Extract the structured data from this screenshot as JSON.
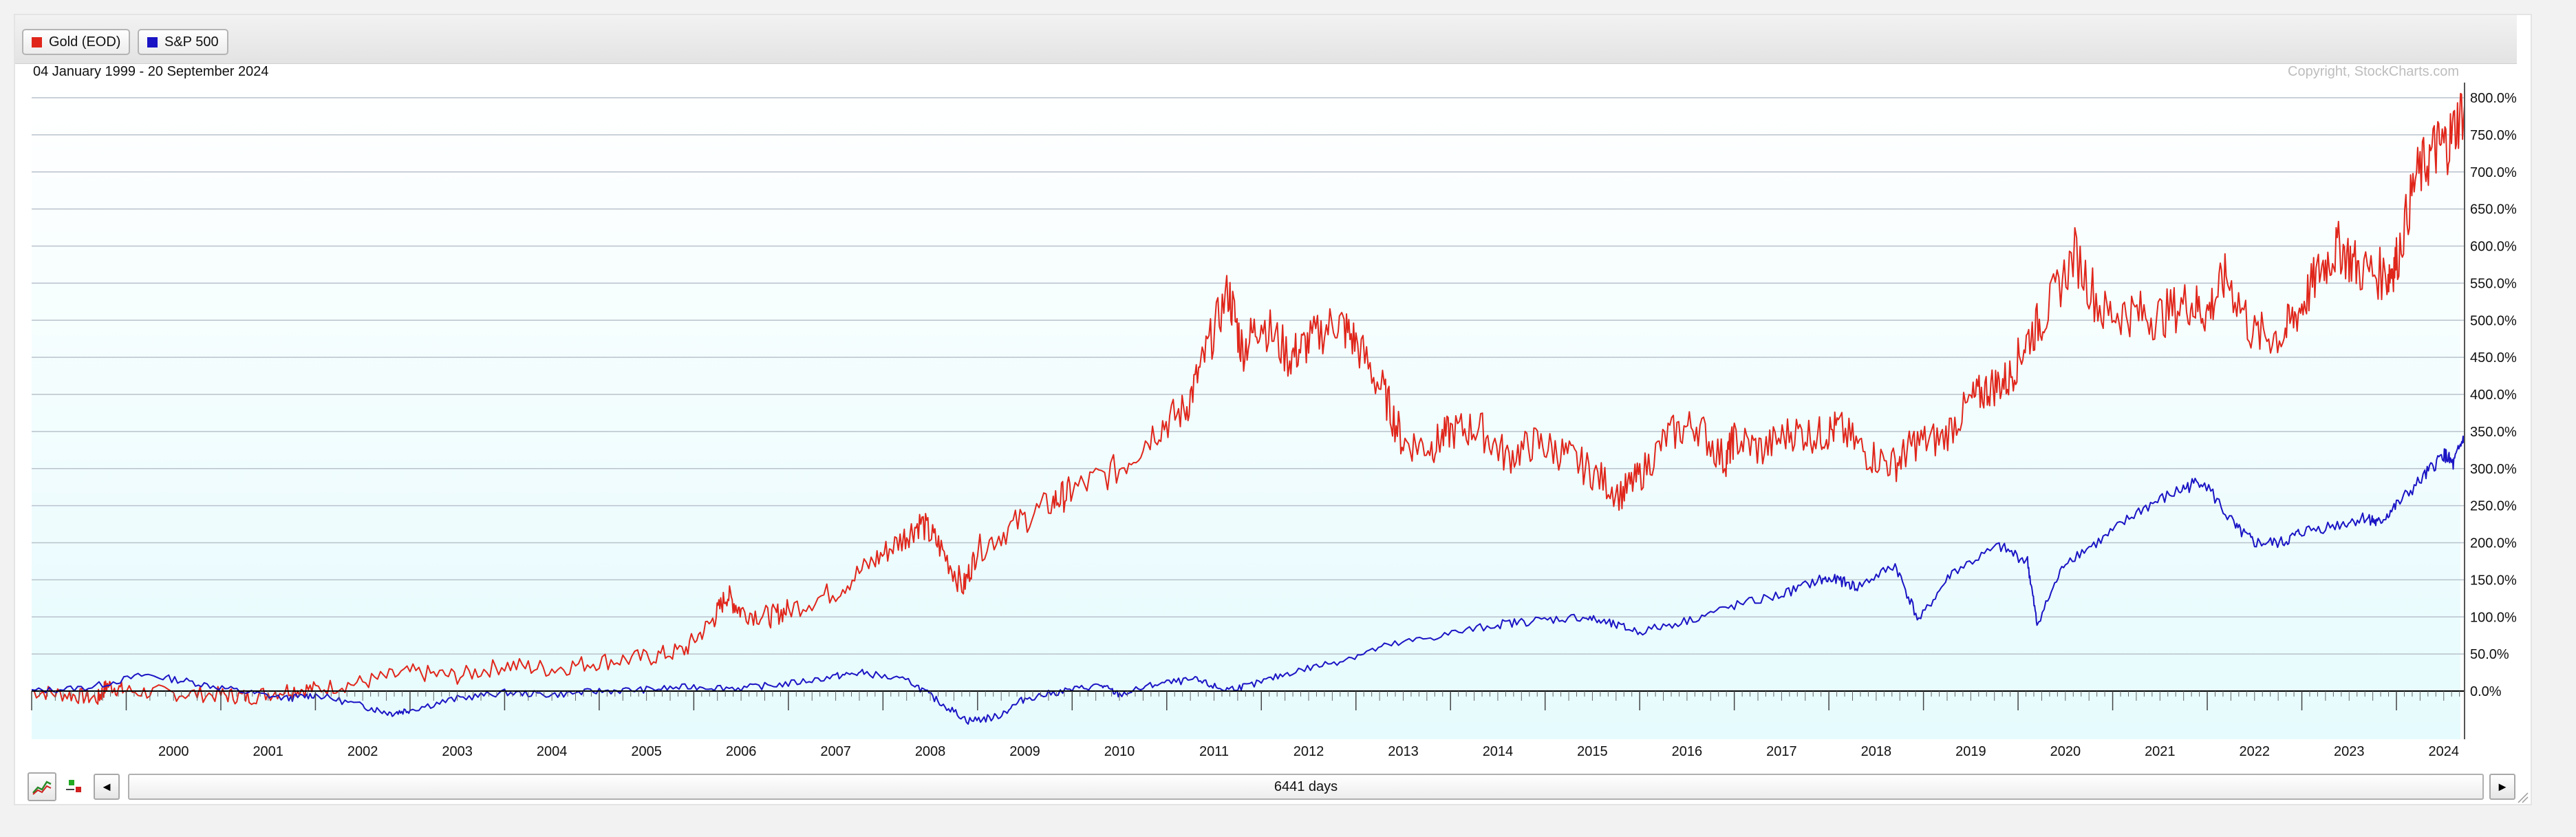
{
  "legend": {
    "items": [
      {
        "label": "Gold (EOD)",
        "color": "#e0261b",
        "icon": "red-square-icon"
      },
      {
        "label": "S&P 500",
        "color": "#1a14c4",
        "icon": "blue-square-icon"
      }
    ]
  },
  "date_range": "04 January 1999 - 20 September 2024",
  "copyright": "Copyright, StockCharts.com",
  "scrollbar": {
    "label": "6441 days",
    "left_arrow": "◄",
    "right_arrow": "►",
    "chart_type_icon": "line-chart-icon",
    "settings_icon": "color-settings-icon"
  },
  "colors": {
    "gold": "#e0261b",
    "spx": "#1a14c4",
    "plot_background_top": "#ffffff",
    "plot_background_bottom": "#e6fbfd",
    "gridline": "#b9c2cc"
  },
  "chart_data": {
    "type": "line",
    "title": "",
    "xlabel": "",
    "ylabel": "",
    "ylim": [
      -50,
      800
    ],
    "xlim": [
      1999.0,
      2024.72
    ],
    "y_unit": "%",
    "grid": true,
    "legend_position": "top-left",
    "x_tick_labels": [
      "2000",
      "2001",
      "2002",
      "2003",
      "2004",
      "2005",
      "2006",
      "2007",
      "2008",
      "2009",
      "2010",
      "2011",
      "2012",
      "2013",
      "2014",
      "2015",
      "2016",
      "2017",
      "2018",
      "2019",
      "2020",
      "2021",
      "2022",
      "2023",
      "2024"
    ],
    "y_tick_labels": [
      "800.0%",
      "750.0%",
      "700.0%",
      "650.0%",
      "600.0%",
      "550.0%",
      "500.0%",
      "450.0%",
      "400.0%",
      "350.0%",
      "300.0%",
      "250.0%",
      "200.0%",
      "150.0%",
      "100.0%",
      "50.0%",
      "0.0%"
    ],
    "series": [
      {
        "name": "Gold (EOD)",
        "color": "#e0261b",
        "x": [
          1999.0,
          1999.4,
          1999.7,
          1999.8,
          2000.0,
          2000.5,
          2001.0,
          2001.3,
          2001.7,
          2002.0,
          2002.5,
          2003.0,
          2003.5,
          2004.0,
          2004.5,
          2005.0,
          2005.5,
          2005.9,
          2006.2,
          2006.35,
          2006.5,
          2006.8,
          2007.0,
          2007.5,
          2007.9,
          2008.2,
          2008.4,
          2008.6,
          2008.85,
          2009.0,
          2009.4,
          2009.8,
          2010.0,
          2010.5,
          2010.9,
          2011.2,
          2011.4,
          2011.65,
          2011.8,
          2012.0,
          2012.3,
          2012.5,
          2012.8,
          2013.0,
          2013.3,
          2013.5,
          2013.8,
          2014.0,
          2014.3,
          2014.6,
          2014.9,
          2015.2,
          2015.5,
          2015.8,
          2016.0,
          2016.3,
          2016.6,
          2016.9,
          2017.0,
          2017.3,
          2017.6,
          2017.9,
          2018.1,
          2018.4,
          2018.7,
          2018.9,
          2019.2,
          2019.5,
          2019.7,
          2019.9,
          2020.1,
          2020.3,
          2020.6,
          2020.9,
          2021.2,
          2021.5,
          2021.8,
          2022.0,
          2022.2,
          2022.5,
          2022.8,
          2023.0,
          2023.2,
          2023.4,
          2023.6,
          2023.9,
          2024.0,
          2024.2,
          2024.4,
          2024.55,
          2024.72
        ],
        "values": [
          0,
          -5,
          -10,
          8,
          0,
          -3,
          -5,
          -8,
          2,
          3,
          12,
          25,
          20,
          35,
          30,
          40,
          45,
          55,
          95,
          130,
          108,
          100,
          110,
          135,
          175,
          205,
          228,
          195,
          140,
          190,
          225,
          255,
          270,
          300,
          355,
          380,
          450,
          540,
          460,
          500,
          450,
          470,
          500,
          470,
          400,
          335,
          330,
          350,
          355,
          315,
          335,
          320,
          295,
          265,
          290,
          345,
          360,
          310,
          340,
          325,
          350,
          345,
          355,
          320,
          305,
          335,
          340,
          390,
          410,
          420,
          475,
          510,
          590,
          510,
          510,
          505,
          525,
          510,
          560,
          480,
          480,
          520,
          570,
          600,
          570,
          560,
          580,
          690,
          730,
          740,
          790
        ]
      },
      {
        "name": "S&P 500",
        "color": "#1a14c4",
        "x": [
          1999.0,
          1999.6,
          2000.2,
          2000.7,
          2001.2,
          2001.7,
          2002.0,
          2002.5,
          2002.8,
          2003.0,
          2003.5,
          2004.0,
          2004.5,
          2005.0,
          2005.5,
          2006.0,
          2006.5,
          2007.0,
          2007.5,
          2007.8,
          2008.3,
          2008.6,
          2008.9,
          2009.2,
          2009.5,
          2009.9,
          2010.3,
          2010.5,
          2010.9,
          2011.3,
          2011.6,
          2011.9,
          2012.3,
          2012.8,
          2013.3,
          2013.9,
          2014.5,
          2014.9,
          2015.4,
          2015.7,
          2016.0,
          2016.5,
          2017.0,
          2017.5,
          2017.9,
          2018.1,
          2018.3,
          2018.7,
          2018.95,
          2019.3,
          2019.8,
          2020.1,
          2020.2,
          2020.5,
          2020.9,
          2021.3,
          2021.7,
          2021.95,
          2022.3,
          2022.5,
          2022.8,
          2023.0,
          2023.4,
          2023.7,
          2023.8,
          2024.0,
          2024.3,
          2024.5,
          2024.6,
          2024.72
        ],
        "values": [
          0,
          5,
          22,
          12,
          0,
          -10,
          -5,
          -20,
          -30,
          -25,
          -10,
          -2,
          -5,
          0,
          2,
          6,
          4,
          10,
          20,
          25,
          12,
          -15,
          -40,
          -35,
          -10,
          0,
          8,
          -5,
          10,
          15,
          2,
          8,
          25,
          40,
          60,
          75,
          90,
          95,
          100,
          90,
          80,
          95,
          115,
          130,
          150,
          150,
          140,
          170,
          95,
          160,
          195,
          175,
          90,
          175,
          205,
          245,
          270,
          285,
          220,
          200,
          200,
          215,
          225,
          235,
          225,
          250,
          290,
          320,
          305,
          345
        ]
      }
    ]
  }
}
